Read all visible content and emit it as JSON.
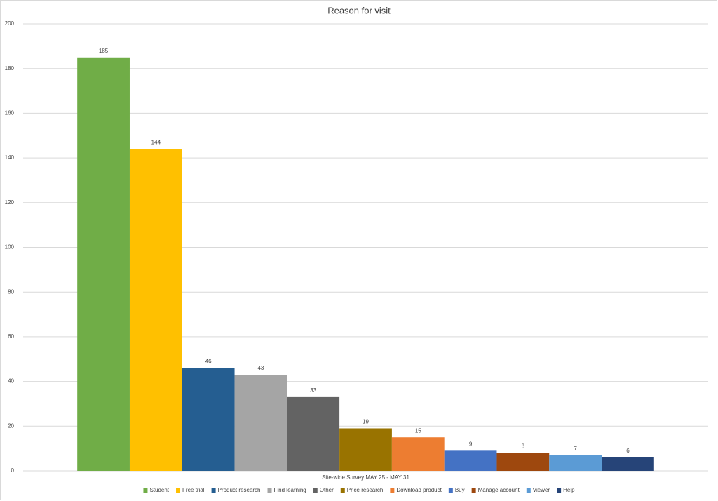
{
  "chart_data": {
    "type": "bar",
    "title": "Reason for visit",
    "categories": [
      "Site-wide Survey MAY 25 - MAY 31"
    ],
    "series": [
      {
        "name": "Student",
        "color": "#70ad47",
        "values": [
          185
        ]
      },
      {
        "name": "Free trial",
        "color": "#ffc000",
        "values": [
          144
        ]
      },
      {
        "name": "Product research",
        "color": "#255e91",
        "values": [
          46
        ]
      },
      {
        "name": "Find learning",
        "color": "#a5a5a5",
        "values": [
          43
        ]
      },
      {
        "name": "Other",
        "color": "#636363",
        "values": [
          33
        ]
      },
      {
        "name": "Price research",
        "color": "#997300",
        "values": [
          19
        ]
      },
      {
        "name": "Download product",
        "color": "#ed7d31",
        "values": [
          15
        ]
      },
      {
        "name": "Buy",
        "color": "#4472c4",
        "values": [
          9
        ]
      },
      {
        "name": "Manage account",
        "color": "#9e480e",
        "values": [
          8
        ]
      },
      {
        "name": "Viewer",
        "color": "#5b9bd5",
        "values": [
          7
        ]
      },
      {
        "name": "Help",
        "color": "#264478",
        "values": [
          6
        ]
      }
    ],
    "ylim": [
      0,
      200
    ],
    "yticks": [
      0,
      20,
      40,
      60,
      80,
      100,
      120,
      140,
      160,
      180,
      200
    ],
    "grid": true,
    "legend": "bottom"
  }
}
